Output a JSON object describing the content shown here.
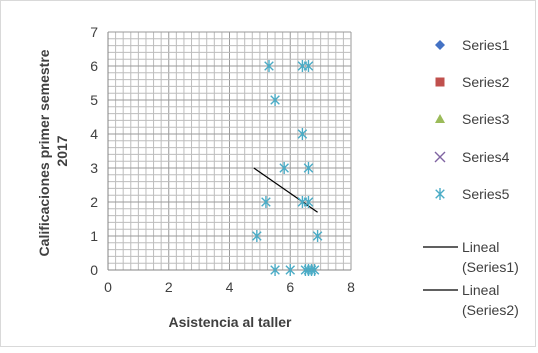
{
  "chart_data": {
    "type": "scatter",
    "xlabel": "Asistencia al taller",
    "ylabel": "Calificaciones primer semestre 2017",
    "xlim": [
      0,
      8
    ],
    "ylim": [
      0,
      7
    ],
    "x_ticks": [
      0,
      2,
      4,
      6,
      8
    ],
    "y_ticks": [
      0,
      1,
      2,
      3,
      4,
      5,
      6,
      7
    ],
    "grid": true,
    "legend_position": "right",
    "series": [
      {
        "name": "Series1",
        "marker": "diamond",
        "color": "#4472C4",
        "points": []
      },
      {
        "name": "Series2",
        "marker": "square",
        "color": "#C0504D",
        "points": []
      },
      {
        "name": "Series3",
        "marker": "triangle",
        "color": "#9BBB59",
        "points": []
      },
      {
        "name": "Series4",
        "marker": "x",
        "color": "#8064A2",
        "points": []
      },
      {
        "name": "Series5",
        "marker": "star",
        "color": "#4BACC6",
        "points": [
          [
            5.3,
            6
          ],
          [
            6.4,
            6
          ],
          [
            6.6,
            6
          ],
          [
            5.5,
            5
          ],
          [
            6.4,
            4
          ],
          [
            5.8,
            3
          ],
          [
            6.6,
            3
          ],
          [
            5.2,
            2
          ],
          [
            6.4,
            2
          ],
          [
            6.6,
            2
          ],
          [
            4.9,
            1
          ],
          [
            6.9,
            1
          ],
          [
            5.5,
            0
          ],
          [
            6.0,
            0
          ],
          [
            6.5,
            0
          ],
          [
            6.6,
            0
          ],
          [
            6.7,
            0
          ],
          [
            6.8,
            0
          ]
        ]
      }
    ],
    "trendlines": [
      {
        "name": "Lineal (Series1)",
        "color": "#000000",
        "from": [
          4.8,
          3.0
        ],
        "to": [
          6.9,
          1.7
        ]
      },
      {
        "name": "Lineal (Series2)",
        "color": "#000000"
      }
    ]
  },
  "legend": {
    "items": [
      "Series1",
      "Series2",
      "Series3",
      "Series4",
      "Series5"
    ],
    "trend_items": [
      {
        "line1": "Lineal",
        "line2": "(Series1)"
      },
      {
        "line1": "Lineal",
        "line2": "(Series2)"
      }
    ]
  }
}
